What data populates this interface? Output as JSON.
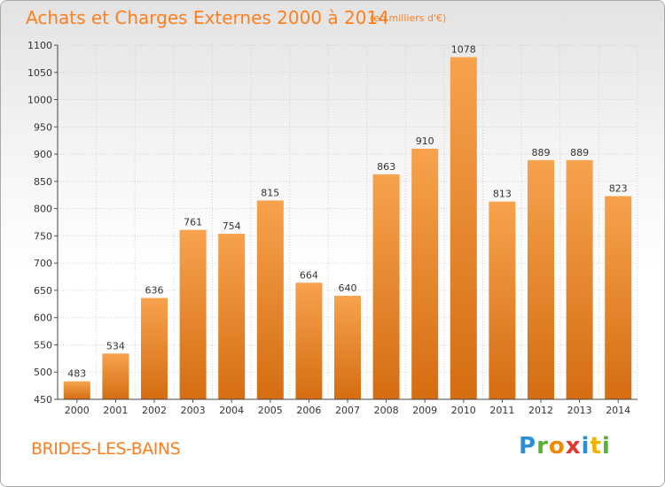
{
  "header": {
    "title": "Achats et Charges Externes 2000 à 2014",
    "unit_note": "(en milliers d'€)"
  },
  "footer": {
    "commune": "BRIDES-LES-BAINS",
    "logo_letters": [
      "P",
      "r",
      "o",
      "x",
      "i",
      "t",
      "i"
    ],
    "logo_colors": [
      "#2a8fd6",
      "#55b233",
      "#f08a00",
      "#e3342f",
      "#2a8fd6",
      "#f0b400",
      "#55b233"
    ]
  },
  "chart_data": {
    "type": "bar",
    "title": "Achats et Charges Externes 2000 à 2014",
    "unit": "(en milliers d'€)",
    "categories": [
      "2000",
      "2001",
      "2002",
      "2003",
      "2004",
      "2005",
      "2006",
      "2007",
      "2008",
      "2009",
      "2010",
      "2011",
      "2012",
      "2013",
      "2014"
    ],
    "values": [
      483,
      534,
      636,
      761,
      754,
      815,
      664,
      640,
      863,
      910,
      1078,
      813,
      889,
      889,
      823
    ],
    "ylim": [
      450,
      1100
    ],
    "yticks": [
      450,
      500,
      550,
      600,
      650,
      700,
      750,
      800,
      850,
      900,
      950,
      1000,
      1050,
      1100
    ],
    "grid": true,
    "bar_color_light": "#f7a24d",
    "bar_color_dark": "#d56d12"
  }
}
